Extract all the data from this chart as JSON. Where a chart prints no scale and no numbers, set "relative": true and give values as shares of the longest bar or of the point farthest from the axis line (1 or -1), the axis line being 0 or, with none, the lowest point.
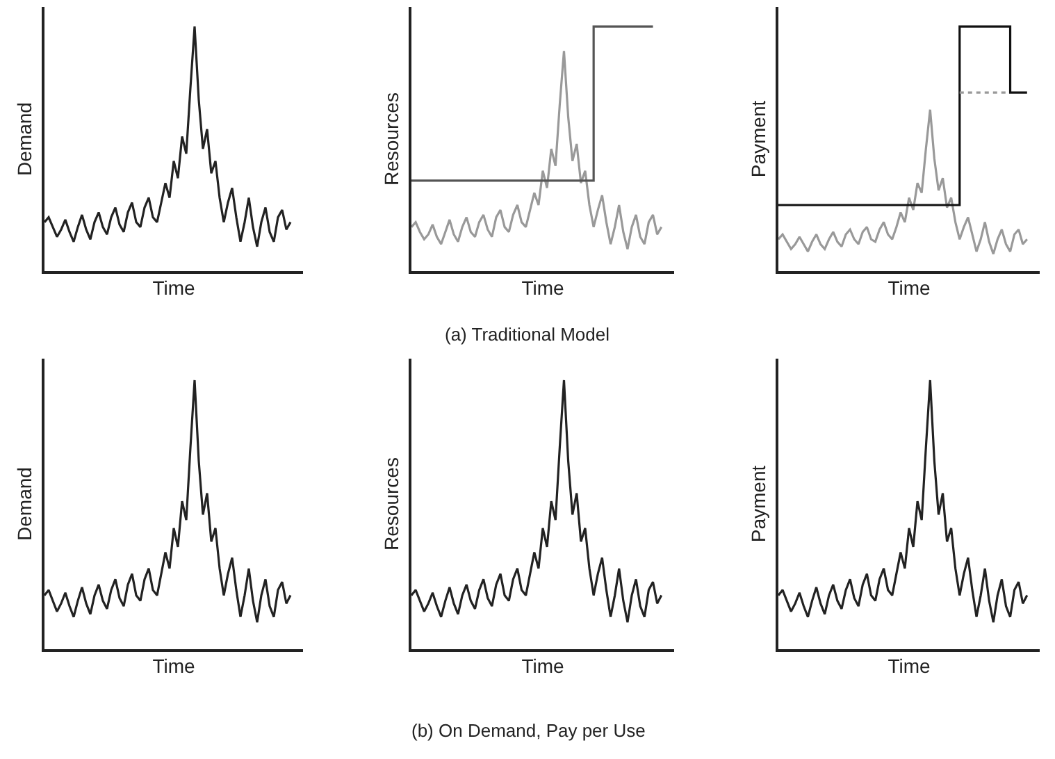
{
  "chart_data": [
    {
      "type": "line",
      "relative": true,
      "xlabel": "Time",
      "ylabel": "Demand",
      "marker": "none",
      "line_style": "solid",
      "categories": [
        null,
        null,
        null,
        null,
        null,
        null,
        null,
        null,
        null,
        null,
        null,
        null,
        null,
        null,
        null,
        null,
        null,
        null,
        null,
        null,
        null,
        null,
        null,
        null,
        null,
        null,
        null,
        null,
        null,
        null,
        null,
        null,
        null,
        null,
        null,
        null,
        null,
        null,
        null,
        null,
        null,
        null,
        null,
        null,
        null,
        null,
        null,
        null,
        null,
        null,
        null,
        null,
        null,
        null,
        null,
        null,
        null,
        null,
        null,
        null
      ],
      "series": [
        {
          "color": "#222222",
          "values": [
            0.2,
            0.22,
            0.18,
            0.14,
            0.17,
            0.21,
            0.16,
            0.12,
            0.18,
            0.23,
            0.17,
            0.13,
            0.2,
            0.24,
            0.18,
            0.15,
            0.22,
            0.26,
            0.19,
            0.16,
            0.24,
            0.28,
            0.2,
            0.18,
            0.26,
            0.3,
            0.22,
            0.2,
            0.28,
            0.36,
            0.3,
            0.45,
            0.38,
            0.55,
            0.48,
            0.75,
            1.0,
            0.7,
            0.5,
            0.58,
            0.4,
            0.45,
            0.3,
            0.2,
            0.28,
            0.34,
            0.22,
            0.12,
            0.2,
            0.3,
            0.18,
            0.1,
            0.2,
            0.26,
            0.16,
            0.12,
            0.22,
            0.25,
            0.17,
            0.2
          ]
        }
      ]
    },
    {
      "type": "line",
      "relative": true,
      "xlabel": "Time",
      "ylabel": "Resources",
      "marker": "none",
      "line_style": "solid",
      "annotations": [
        "(a) Traditional Model"
      ],
      "categories": [
        null,
        null,
        null,
        null,
        null,
        null,
        null,
        null,
        null,
        null,
        null,
        null,
        null,
        null,
        null,
        null,
        null,
        null,
        null,
        null,
        null,
        null,
        null,
        null,
        null,
        null,
        null,
        null,
        null,
        null,
        null,
        null,
        null,
        null,
        null,
        null,
        null,
        null,
        null,
        null,
        null,
        null,
        null,
        null,
        null,
        null,
        null,
        null,
        null,
        null,
        null,
        null,
        null,
        null,
        null,
        null,
        null,
        null,
        null,
        null
      ],
      "series": [
        {
          "color": "#999999",
          "values": [
            0.18,
            0.2,
            0.16,
            0.13,
            0.15,
            0.19,
            0.14,
            0.11,
            0.16,
            0.21,
            0.15,
            0.12,
            0.18,
            0.22,
            0.16,
            0.14,
            0.2,
            0.23,
            0.17,
            0.14,
            0.22,
            0.25,
            0.18,
            0.16,
            0.23,
            0.27,
            0.2,
            0.18,
            0.25,
            0.32,
            0.27,
            0.41,
            0.34,
            0.5,
            0.43,
            0.68,
            0.9,
            0.63,
            0.45,
            0.52,
            0.36,
            0.41,
            0.27,
            0.18,
            0.25,
            0.31,
            0.2,
            0.11,
            0.18,
            0.27,
            0.16,
            0.09,
            0.18,
            0.23,
            0.14,
            0.11,
            0.2,
            0.23,
            0.15,
            0.18
          ]
        },
        {
          "type": "step",
          "color": "#555555",
          "values": [
            0.37,
            0.37,
            0.37,
            0.37,
            0.37,
            0.37,
            0.37,
            0.37,
            0.37,
            0.37,
            0.37,
            0.37,
            0.37,
            0.37,
            0.37,
            0.37,
            0.37,
            0.37,
            0.37,
            0.37,
            0.37,
            0.37,
            0.37,
            0.37,
            0.37,
            0.37,
            0.37,
            0.37,
            0.37,
            0.37,
            0.37,
            0.37,
            0.37,
            0.37,
            0.37,
            0.37,
            0.37,
            0.37,
            0.37,
            0.37,
            0.37,
            0.37,
            0.37,
            1,
            1,
            1,
            1,
            1,
            1,
            1,
            1,
            1,
            1,
            1,
            1,
            1,
            1,
            1,
            null,
            null
          ]
        }
      ]
    },
    {
      "type": "line",
      "relative": true,
      "xlabel": "Time",
      "ylabel": "Payment",
      "marker": "none",
      "line_style": "solid",
      "categories": [
        null,
        null,
        null,
        null,
        null,
        null,
        null,
        null,
        null,
        null,
        null,
        null,
        null,
        null,
        null,
        null,
        null,
        null,
        null,
        null,
        null,
        null,
        null,
        null,
        null,
        null,
        null,
        null,
        null,
        null,
        null,
        null,
        null,
        null,
        null,
        null,
        null,
        null,
        null,
        null,
        null,
        null,
        null,
        null,
        null,
        null,
        null,
        null,
        null,
        null,
        null,
        null,
        null,
        null,
        null,
        null,
        null,
        null,
        null,
        null
      ],
      "series": [
        {
          "color": "#999999",
          "values": [
            0.13,
            0.15,
            0.12,
            0.09,
            0.11,
            0.14,
            0.11,
            0.08,
            0.12,
            0.15,
            0.11,
            0.09,
            0.13,
            0.16,
            0.12,
            0.1,
            0.15,
            0.17,
            0.13,
            0.11,
            0.16,
            0.18,
            0.13,
            0.12,
            0.17,
            0.2,
            0.15,
            0.13,
            0.18,
            0.24,
            0.2,
            0.3,
            0.25,
            0.36,
            0.32,
            0.5,
            0.66,
            0.46,
            0.33,
            0.38,
            0.26,
            0.3,
            0.2,
            0.13,
            0.18,
            0.22,
            0.15,
            0.08,
            0.13,
            0.2,
            0.12,
            0.07,
            0.13,
            0.17,
            0.11,
            0.08,
            0.15,
            0.17,
            0.11,
            0.13
          ]
        },
        {
          "type": "step",
          "color": "#111111",
          "values": [
            0.27,
            0.27,
            0.27,
            0.27,
            0.27,
            0.27,
            0.27,
            0.27,
            0.27,
            0.27,
            0.27,
            0.27,
            0.27,
            0.27,
            0.27,
            0.27,
            0.27,
            0.27,
            0.27,
            0.27,
            0.27,
            0.27,
            0.27,
            0.27,
            0.27,
            0.27,
            0.27,
            0.27,
            0.27,
            0.27,
            0.27,
            0.27,
            0.27,
            0.27,
            0.27,
            0.27,
            0.27,
            0.27,
            0.27,
            0.27,
            0.27,
            0.27,
            0.27,
            1,
            1,
            1,
            1,
            1,
            1,
            1,
            1,
            1,
            1,
            1,
            1,
            0.73,
            0.73,
            0.73,
            0.73,
            0.73
          ]
        },
        {
          "type": "line",
          "color": "#999999",
          "line_style": "dotted",
          "values": [
            null,
            null,
            null,
            null,
            null,
            null,
            null,
            null,
            null,
            null,
            null,
            null,
            null,
            null,
            null,
            null,
            null,
            null,
            null,
            null,
            null,
            null,
            null,
            null,
            null,
            null,
            null,
            null,
            null,
            null,
            null,
            null,
            null,
            null,
            null,
            null,
            null,
            null,
            null,
            null,
            null,
            null,
            null,
            0.73,
            0.73,
            0.73,
            0.73,
            0.73,
            0.73,
            0.73,
            0.73,
            0.73,
            0.73,
            0.73,
            0.73,
            null,
            null,
            null,
            null,
            null
          ]
        }
      ]
    },
    {
      "type": "line",
      "relative": true,
      "xlabel": "Time",
      "ylabel": "Demand",
      "marker": "none",
      "line_style": "solid",
      "categories": [
        null,
        null,
        null,
        null,
        null,
        null,
        null,
        null,
        null,
        null,
        null,
        null,
        null,
        null,
        null,
        null,
        null,
        null,
        null,
        null,
        null,
        null,
        null,
        null,
        null,
        null,
        null,
        null,
        null,
        null,
        null,
        null,
        null,
        null,
        null,
        null,
        null,
        null,
        null,
        null,
        null,
        null,
        null,
        null,
        null,
        null,
        null,
        null,
        null,
        null,
        null,
        null,
        null,
        null,
        null,
        null,
        null,
        null,
        null,
        null
      ],
      "series": [
        {
          "color": "#222222",
          "values": [
            0.2,
            0.22,
            0.18,
            0.14,
            0.17,
            0.21,
            0.16,
            0.12,
            0.18,
            0.23,
            0.17,
            0.13,
            0.2,
            0.24,
            0.18,
            0.15,
            0.22,
            0.26,
            0.19,
            0.16,
            0.24,
            0.28,
            0.2,
            0.18,
            0.26,
            0.3,
            0.22,
            0.2,
            0.28,
            0.36,
            0.3,
            0.45,
            0.38,
            0.55,
            0.48,
            0.75,
            1.0,
            0.7,
            0.5,
            0.58,
            0.4,
            0.45,
            0.3,
            0.2,
            0.28,
            0.34,
            0.22,
            0.12,
            0.2,
            0.3,
            0.18,
            0.1,
            0.2,
            0.26,
            0.16,
            0.12,
            0.22,
            0.25,
            0.17,
            0.2
          ]
        }
      ]
    },
    {
      "type": "line",
      "relative": true,
      "xlabel": "Time",
      "ylabel": "Resources",
      "marker": "none",
      "line_style": "solid",
      "annotations": [
        "(b) On Demand, Pay per Use"
      ],
      "categories": [
        null,
        null,
        null,
        null,
        null,
        null,
        null,
        null,
        null,
        null,
        null,
        null,
        null,
        null,
        null,
        null,
        null,
        null,
        null,
        null,
        null,
        null,
        null,
        null,
        null,
        null,
        null,
        null,
        null,
        null,
        null,
        null,
        null,
        null,
        null,
        null,
        null,
        null,
        null,
        null,
        null,
        null,
        null,
        null,
        null,
        null,
        null,
        null,
        null,
        null,
        null,
        null,
        null,
        null,
        null,
        null,
        null,
        null,
        null,
        null
      ],
      "series": [
        {
          "color": "#222222",
          "values": [
            0.2,
            0.22,
            0.18,
            0.14,
            0.17,
            0.21,
            0.16,
            0.12,
            0.18,
            0.23,
            0.17,
            0.13,
            0.2,
            0.24,
            0.18,
            0.15,
            0.22,
            0.26,
            0.19,
            0.16,
            0.24,
            0.28,
            0.2,
            0.18,
            0.26,
            0.3,
            0.22,
            0.2,
            0.28,
            0.36,
            0.3,
            0.45,
            0.38,
            0.55,
            0.48,
            0.75,
            1.0,
            0.7,
            0.5,
            0.58,
            0.4,
            0.45,
            0.3,
            0.2,
            0.28,
            0.34,
            0.22,
            0.12,
            0.2,
            0.3,
            0.18,
            0.1,
            0.2,
            0.26,
            0.16,
            0.12,
            0.22,
            0.25,
            0.17,
            0.2
          ]
        }
      ]
    },
    {
      "type": "line",
      "relative": true,
      "xlabel": "Time",
      "ylabel": "Payment",
      "marker": "none",
      "line_style": "solid",
      "categories": [
        null,
        null,
        null,
        null,
        null,
        null,
        null,
        null,
        null,
        null,
        null,
        null,
        null,
        null,
        null,
        null,
        null,
        null,
        null,
        null,
        null,
        null,
        null,
        null,
        null,
        null,
        null,
        null,
        null,
        null,
        null,
        null,
        null,
        null,
        null,
        null,
        null,
        null,
        null,
        null,
        null,
        null,
        null,
        null,
        null,
        null,
        null,
        null,
        null,
        null,
        null,
        null,
        null,
        null,
        null,
        null,
        null,
        null,
        null,
        null
      ],
      "series": [
        {
          "color": "#222222",
          "values": [
            0.2,
            0.22,
            0.18,
            0.14,
            0.17,
            0.21,
            0.16,
            0.12,
            0.18,
            0.23,
            0.17,
            0.13,
            0.2,
            0.24,
            0.18,
            0.15,
            0.22,
            0.26,
            0.19,
            0.16,
            0.24,
            0.28,
            0.2,
            0.18,
            0.26,
            0.3,
            0.22,
            0.2,
            0.28,
            0.36,
            0.3,
            0.45,
            0.38,
            0.55,
            0.48,
            0.75,
            1.0,
            0.7,
            0.5,
            0.58,
            0.4,
            0.45,
            0.3,
            0.2,
            0.28,
            0.34,
            0.22,
            0.12,
            0.2,
            0.3,
            0.18,
            0.1,
            0.2,
            0.26,
            0.16,
            0.12,
            0.22,
            0.25,
            0.17,
            0.2
          ]
        }
      ]
    }
  ]
}
